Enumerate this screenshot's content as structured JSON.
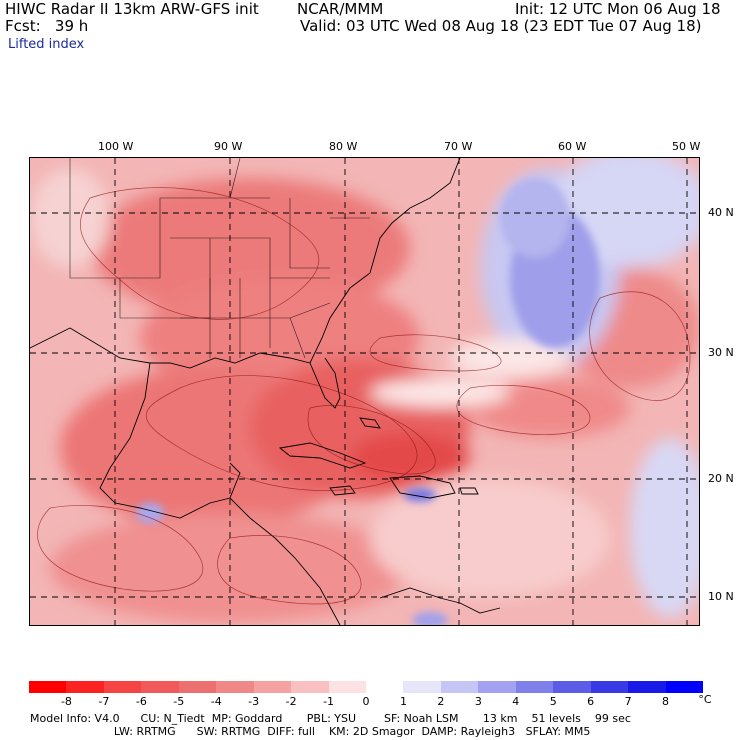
{
  "header": {
    "model": "HIWC Radar II 13km ARW-GFS init",
    "org": "NCAR/MMM",
    "init": "Init: 12 UTC Mon 06 Aug 18",
    "fcst": "Fcst:   39 h",
    "valid": "Valid: 03 UTC Wed 08 Aug 18 (23 EDT Tue 07 Aug 18)",
    "field": "Lifted index"
  },
  "map": {
    "lon_labels": [
      "100 W",
      "90 W",
      "80 W",
      "70 W",
      "60 W",
      "50 W"
    ],
    "lat_labels": [
      "40 N",
      "30 N",
      "20 N",
      "10 N"
    ]
  },
  "colorbar": {
    "unit": "°C",
    "ticks": [
      "-8",
      "-7",
      "-6",
      "-5",
      "-4",
      "-3",
      "-2",
      "-1",
      "0",
      "1",
      "2",
      "3",
      "4",
      "5",
      "6",
      "7",
      "8"
    ],
    "colors": [
      "#ff0000",
      "#fb2222",
      "#f64444",
      "#f05a5a",
      "#ec7070",
      "#f08888",
      "#f4a2a2",
      "#f8c0c0",
      "#fce2e2",
      "#ffffff",
      "#e6e6fb",
      "#c6c6f6",
      "#a2a2f0",
      "#8080ea",
      "#5c5ce6",
      "#3a3ae4",
      "#1a1ae8",
      "#0000ff"
    ]
  },
  "footer": {
    "line1": "Model Info: V4.0      CU: N_Tiedt  MP: Goddard       PBL: YSU        SF: Noah LSM       13 km    51 levels    99 sec",
    "line2": "                        LW: RRTMG      SW: RRTMG  DIFF: full    KM: 2D Smagor  DAMP: Rayleigh3   SFLAY: MM5"
  }
}
